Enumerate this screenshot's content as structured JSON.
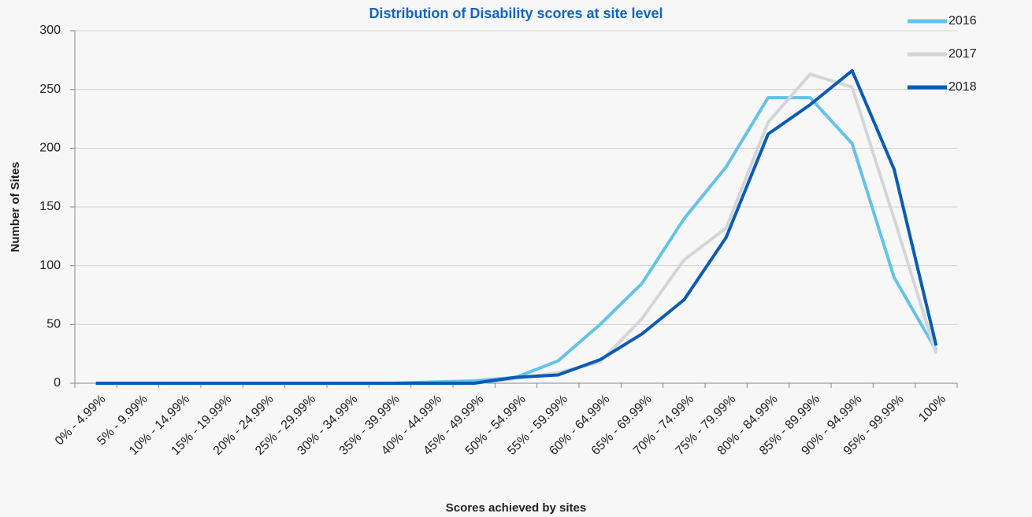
{
  "chart_data": {
    "type": "line",
    "title": "Distribution of Disability scores at site level",
    "x_label": "Scores achieved by sites",
    "y_label": "Number of Sites",
    "categories": [
      "0% - 4.99%",
      "5% - 9.99%",
      "10% - 14.99%",
      "15% - 19.99%",
      "20% - 24.99%",
      "25% - 29.99%",
      "30% - 34.99%",
      "35% - 39.99%",
      "40% - 44.99%",
      "45% - 49.99%",
      "50% - 54.99%",
      "55% - 59.99%",
      "60% - 64.99%",
      "65% - 69.99%",
      "70% - 74.99%",
      "75% - 79.99%",
      "80% - 84.99%",
      "85% - 89.99%",
      "90% - 94.99%",
      "95% - 99.99%",
      "100%"
    ],
    "series": [
      {
        "name": "2016",
        "color": "#63c3e9",
        "values": [
          0,
          0,
          0,
          0,
          0,
          0,
          0,
          0,
          1,
          2,
          5,
          19,
          50,
          85,
          140,
          184,
          243,
          243,
          204,
          90,
          28
        ]
      },
      {
        "name": "2017",
        "color": "#d3d6d9",
        "values": [
          0,
          0,
          0,
          0,
          0,
          0,
          0,
          0,
          0,
          0,
          4,
          9,
          18,
          55,
          105,
          132,
          222,
          263,
          252,
          140,
          25
        ]
      },
      {
        "name": "2018",
        "color": "#0a5bb5",
        "values": [
          0,
          0,
          0,
          0,
          0,
          0,
          0,
          0,
          0,
          0,
          5,
          7,
          20,
          42,
          71,
          124,
          212,
          237,
          266,
          182,
          32
        ]
      }
    ],
    "ylim": [
      0,
      300
    ],
    "yticks": [
      0,
      50,
      100,
      150,
      200,
      250,
      300
    ],
    "grid": true,
    "legend": "top-right"
  }
}
